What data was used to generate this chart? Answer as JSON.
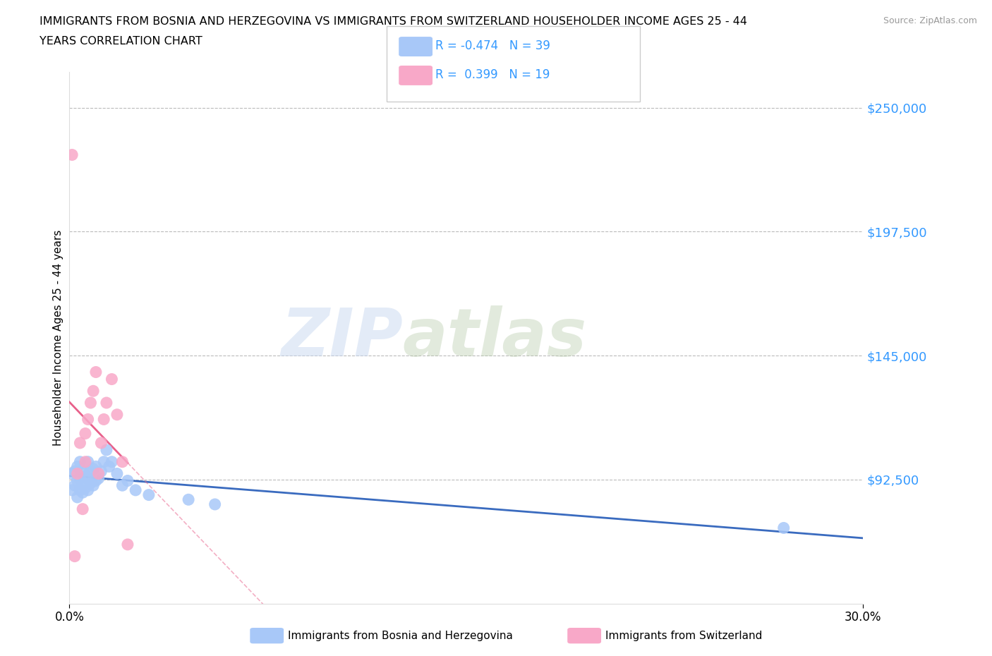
{
  "title_line1": "IMMIGRANTS FROM BOSNIA AND HERZEGOVINA VS IMMIGRANTS FROM SWITZERLAND HOUSEHOLDER INCOME AGES 25 - 44",
  "title_line2": "YEARS CORRELATION CHART",
  "source": "Source: ZipAtlas.com",
  "ylabel": "Householder Income Ages 25 - 44 years",
  "xlim": [
    0.0,
    0.3
  ],
  "ylim": [
    40000,
    265000
  ],
  "yticks": [
    92500,
    145000,
    197500,
    250000
  ],
  "ytick_labels": [
    "$92,500",
    "$145,000",
    "$197,500",
    "$250,000"
  ],
  "xtick_labels": [
    "0.0%",
    "30.0%"
  ],
  "color_bosnia": "#a8c8f8",
  "color_switzerland": "#f8a8c8",
  "color_line_bosnia": "#3a6bbf",
  "color_line_switzerland": "#e8608a",
  "color_ytick_labels": "#3399ff",
  "watermark_zip": "ZIP",
  "watermark_atlas": "atlas",
  "bosnia_x": [
    0.001,
    0.001,
    0.002,
    0.002,
    0.003,
    0.003,
    0.003,
    0.004,
    0.004,
    0.004,
    0.005,
    0.005,
    0.005,
    0.006,
    0.006,
    0.006,
    0.007,
    0.007,
    0.007,
    0.008,
    0.008,
    0.009,
    0.009,
    0.01,
    0.01,
    0.011,
    0.012,
    0.013,
    0.014,
    0.015,
    0.016,
    0.018,
    0.02,
    0.022,
    0.025,
    0.03,
    0.045,
    0.055,
    0.27
  ],
  "bosnia_y": [
    88000,
    95000,
    90000,
    96000,
    85000,
    92000,
    98000,
    88000,
    93000,
    100000,
    87000,
    91000,
    96000,
    89000,
    94000,
    99000,
    88000,
    93000,
    100000,
    91000,
    96000,
    90000,
    97000,
    92000,
    98000,
    93000,
    96000,
    100000,
    105000,
    98000,
    100000,
    95000,
    90000,
    92000,
    88000,
    86000,
    84000,
    82000,
    72000
  ],
  "switzerland_x": [
    0.001,
    0.002,
    0.003,
    0.004,
    0.005,
    0.006,
    0.006,
    0.007,
    0.008,
    0.009,
    0.01,
    0.011,
    0.012,
    0.013,
    0.014,
    0.016,
    0.018,
    0.02,
    0.022
  ],
  "switzerland_y": [
    230000,
    60000,
    95000,
    108000,
    80000,
    100000,
    112000,
    118000,
    125000,
    130000,
    138000,
    95000,
    108000,
    118000,
    125000,
    135000,
    120000,
    100000,
    65000
  ]
}
